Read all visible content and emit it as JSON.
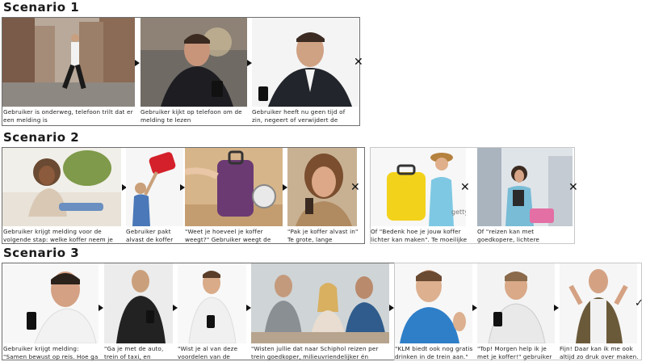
{
  "scenario1": {
    "title": "Scenario 1",
    "captions": [
      "Gebruiker is onderweg, telefoon trilt dat er een melding is",
      "Gebruiker kijkt op telefoon om de melding te lezen",
      "Gebruiker heeft nu geen tijd of zin, negeert of verwijdert de melding"
    ]
  },
  "scenario2": {
    "title": "Scenario 2",
    "captions": [
      "Gebruiker krijgt melding voor de volgende stap: welke koffer neem je mee?",
      "Gebruiker pakt alvast de koffer",
      "\"Weet je hoeveel je koffer weegt?\" Gebruiker weegt de lege koffer",
      "\"Pak je koffer alvast in\" Te grote, lange opdracht",
      "Of \"Bedenk hoe je jouw koffer lichter kan maken\". Te moeilijke opdracht.",
      "Of \"reizen kan met goedkopere, lichtere materialen\", ongewenst."
    ],
    "photo_text": "getty"
  },
  "scenario3": {
    "title": "Scenario 3",
    "captions": [
      "Gebruiker krijgt melding: \"Samen bewust op reis. Hoe ga jij op reis?\"",
      "\"Ga je met de auto, trein of taxi, en waarom zo? \"",
      "\"Wist je al van deze voordelen van de trein?\"",
      "\"Wisten jullie dat naar Schiphol reizen per trein goedkoper, milieuvriendelijker én rustgevender kan zijn?\"",
      "\"KLM biedt ook nog gratis drinken in de trein aan.\"",
      "\"Top! Morgen help ik je met je koffer!\" gebruiker opgelucht",
      "Fijn! Daar kan ik me ook altijd zo druk over maken."
    ]
  },
  "symbols": {
    "fail": "✕",
    "success": "✓"
  }
}
